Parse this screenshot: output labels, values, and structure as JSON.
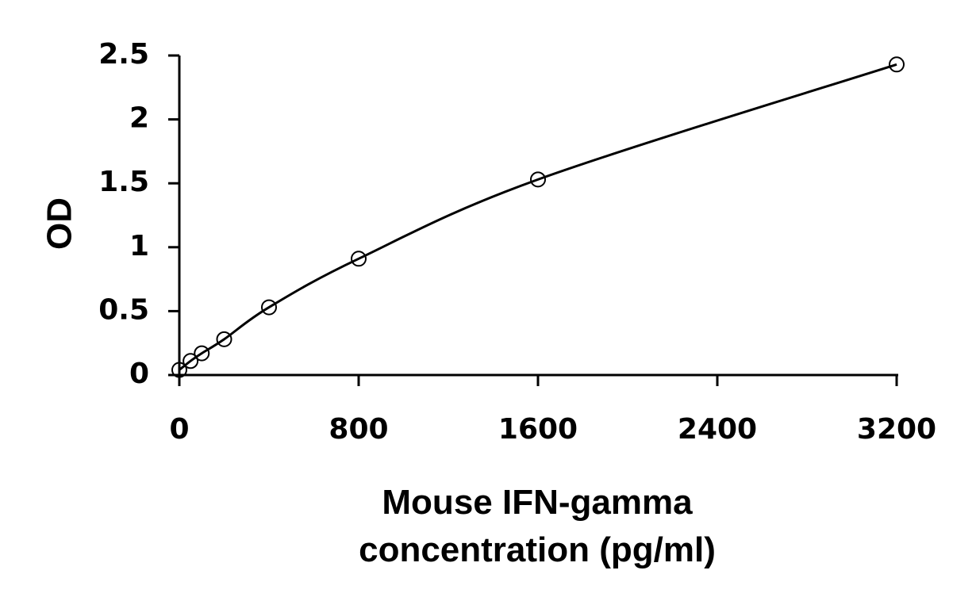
{
  "chart_data": {
    "type": "scatter",
    "title": "",
    "ylabel": "OD",
    "xlabel_lines": [
      "Mouse IFN-gamma",
      "concentration (pg/ml)"
    ],
    "xlim": [
      0,
      3200
    ],
    "ylim": [
      0,
      2.5
    ],
    "x_ticks": [
      0,
      800,
      1600,
      2400,
      3200
    ],
    "x_tick_labels": [
      "0",
      "800",
      "1600",
      "2400",
      "3200"
    ],
    "y_ticks": [
      0,
      0.5,
      1,
      1.5,
      2,
      2.5
    ],
    "y_tick_labels": [
      "0",
      "0.5",
      "1",
      "1.5",
      "2",
      "2.5"
    ],
    "grid": false,
    "legend": "none",
    "series": [
      {
        "marker": "open-circle",
        "fit_line": "smooth-curve",
        "x": [
          0,
          50,
          100,
          200,
          400,
          800,
          1600,
          3200
        ],
        "y": [
          0.04,
          0.11,
          0.17,
          0.28,
          0.53,
          0.91,
          1.53,
          2.43
        ]
      }
    ]
  }
}
